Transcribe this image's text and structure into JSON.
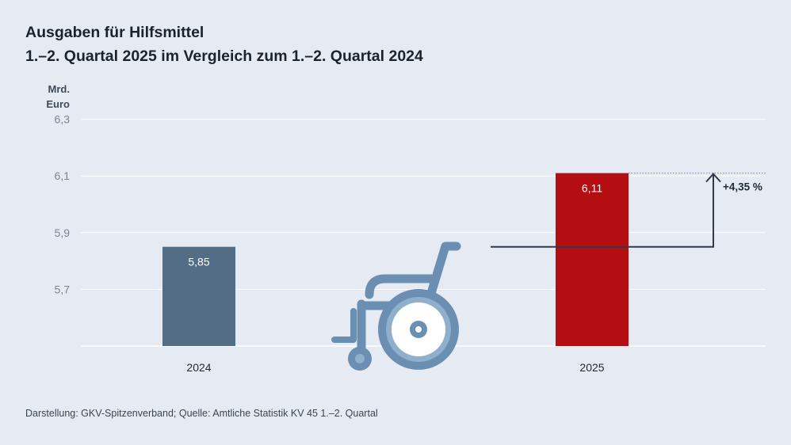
{
  "title_line1": "Ausgaben für Hilfsmittel",
  "title_line2": "1.–2. Quartal 2025 im Vergleich zum 1.–2. Quartal 2024",
  "source": "Darstellung: GKV-Spitzenverband; Quelle: Amtliche Statistik KV 45 1.–2. Quartal",
  "icon": "wheelchair-icon",
  "colors": {
    "bar_2024": "#526d85",
    "bar_2025": "#b50e12",
    "gridline": "#ffffff",
    "axis_text": "#7b8594",
    "icon": "#6a8fb2",
    "arrow": "#2f3b4b"
  },
  "chart_data": {
    "type": "bar",
    "title": "Ausgaben für Hilfsmittel – 1.–2. Quartal 2025 im Vergleich zum 1.–2. Quartal 2024",
    "ylabel": "Mrd. Euro",
    "ylabel_lines": [
      "Mrd.",
      "Euro"
    ],
    "xlabel": "",
    "categories": [
      "2024",
      "2025"
    ],
    "values": [
      5.85,
      6.11
    ],
    "value_labels": [
      "5,85",
      "6,11"
    ],
    "ylim": [
      5.5,
      6.3
    ],
    "yticks": [
      5.7,
      5.9,
      6.1,
      6.3
    ],
    "ytick_labels": [
      "5,7",
      "5,9",
      "6,1",
      "6,3"
    ],
    "grid": true,
    "change_label": "+4,35 %"
  }
}
